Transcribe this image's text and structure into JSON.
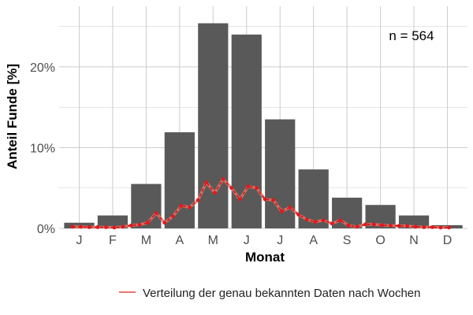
{
  "chart_data": {
    "type": "bar",
    "xlabel": "Monat",
    "ylabel": "Anteil Funde [%]",
    "categories": [
      "J",
      "F",
      "M",
      "A",
      "M",
      "J",
      "J",
      "A",
      "S",
      "O",
      "N",
      "D"
    ],
    "values": [
      0.7,
      1.6,
      5.5,
      11.9,
      25.4,
      24.0,
      13.5,
      7.3,
      3.8,
      2.9,
      1.6,
      0.4
    ],
    "ylim": [
      0,
      27.5
    ],
    "yticks": [
      0,
      10,
      20
    ],
    "ytick_labels": [
      "0%",
      "10%",
      "20%"
    ],
    "grid": true,
    "annotation": "n = 564",
    "line_series": {
      "name": "Verteilung der genau bekannten Daten nach Wochen",
      "color": "#e8756b",
      "x": [
        0.8,
        1.05,
        1.3,
        1.55,
        1.8,
        2.05,
        2.3,
        2.55,
        2.8,
        3.05,
        3.3,
        3.55,
        3.8,
        4.05,
        4.3,
        4.55,
        4.8,
        5.05,
        5.3,
        5.55,
        5.8,
        6.05,
        6.3,
        6.55,
        6.8,
        7.05,
        7.3,
        7.55,
        7.8,
        8.05,
        8.3,
        8.55,
        8.8,
        9.05,
        9.3,
        9.55,
        9.8,
        10.05,
        10.3,
        10.55,
        10.8,
        11.05,
        11.3,
        11.55,
        11.8,
        12.05
      ],
      "values": [
        0.2,
        0.2,
        0.15,
        0.15,
        0.15,
        0.1,
        0.2,
        0.35,
        0.45,
        0.7,
        1.9,
        0.7,
        1.5,
        2.8,
        2.6,
        3.5,
        5.7,
        4.4,
        6.1,
        5.0,
        3.6,
        5.2,
        5.0,
        3.6,
        3.5,
        2.1,
        2.6,
        1.7,
        1.1,
        0.8,
        1.0,
        0.6,
        1.0,
        0.35,
        0.2,
        0.5,
        0.5,
        0.4,
        0.35,
        0.3,
        0.3,
        0.2,
        0.15,
        0.15,
        0.1,
        0.1
      ]
    },
    "legend": {
      "position": "bottom-right",
      "label": "Verteilung der genau bekannten Daten nach Wochen"
    },
    "colors": {
      "bar": "#595959",
      "grid": "#cccccc",
      "line": "#e8756b",
      "point": "#e0191e",
      "dash": "#d01010"
    }
  }
}
